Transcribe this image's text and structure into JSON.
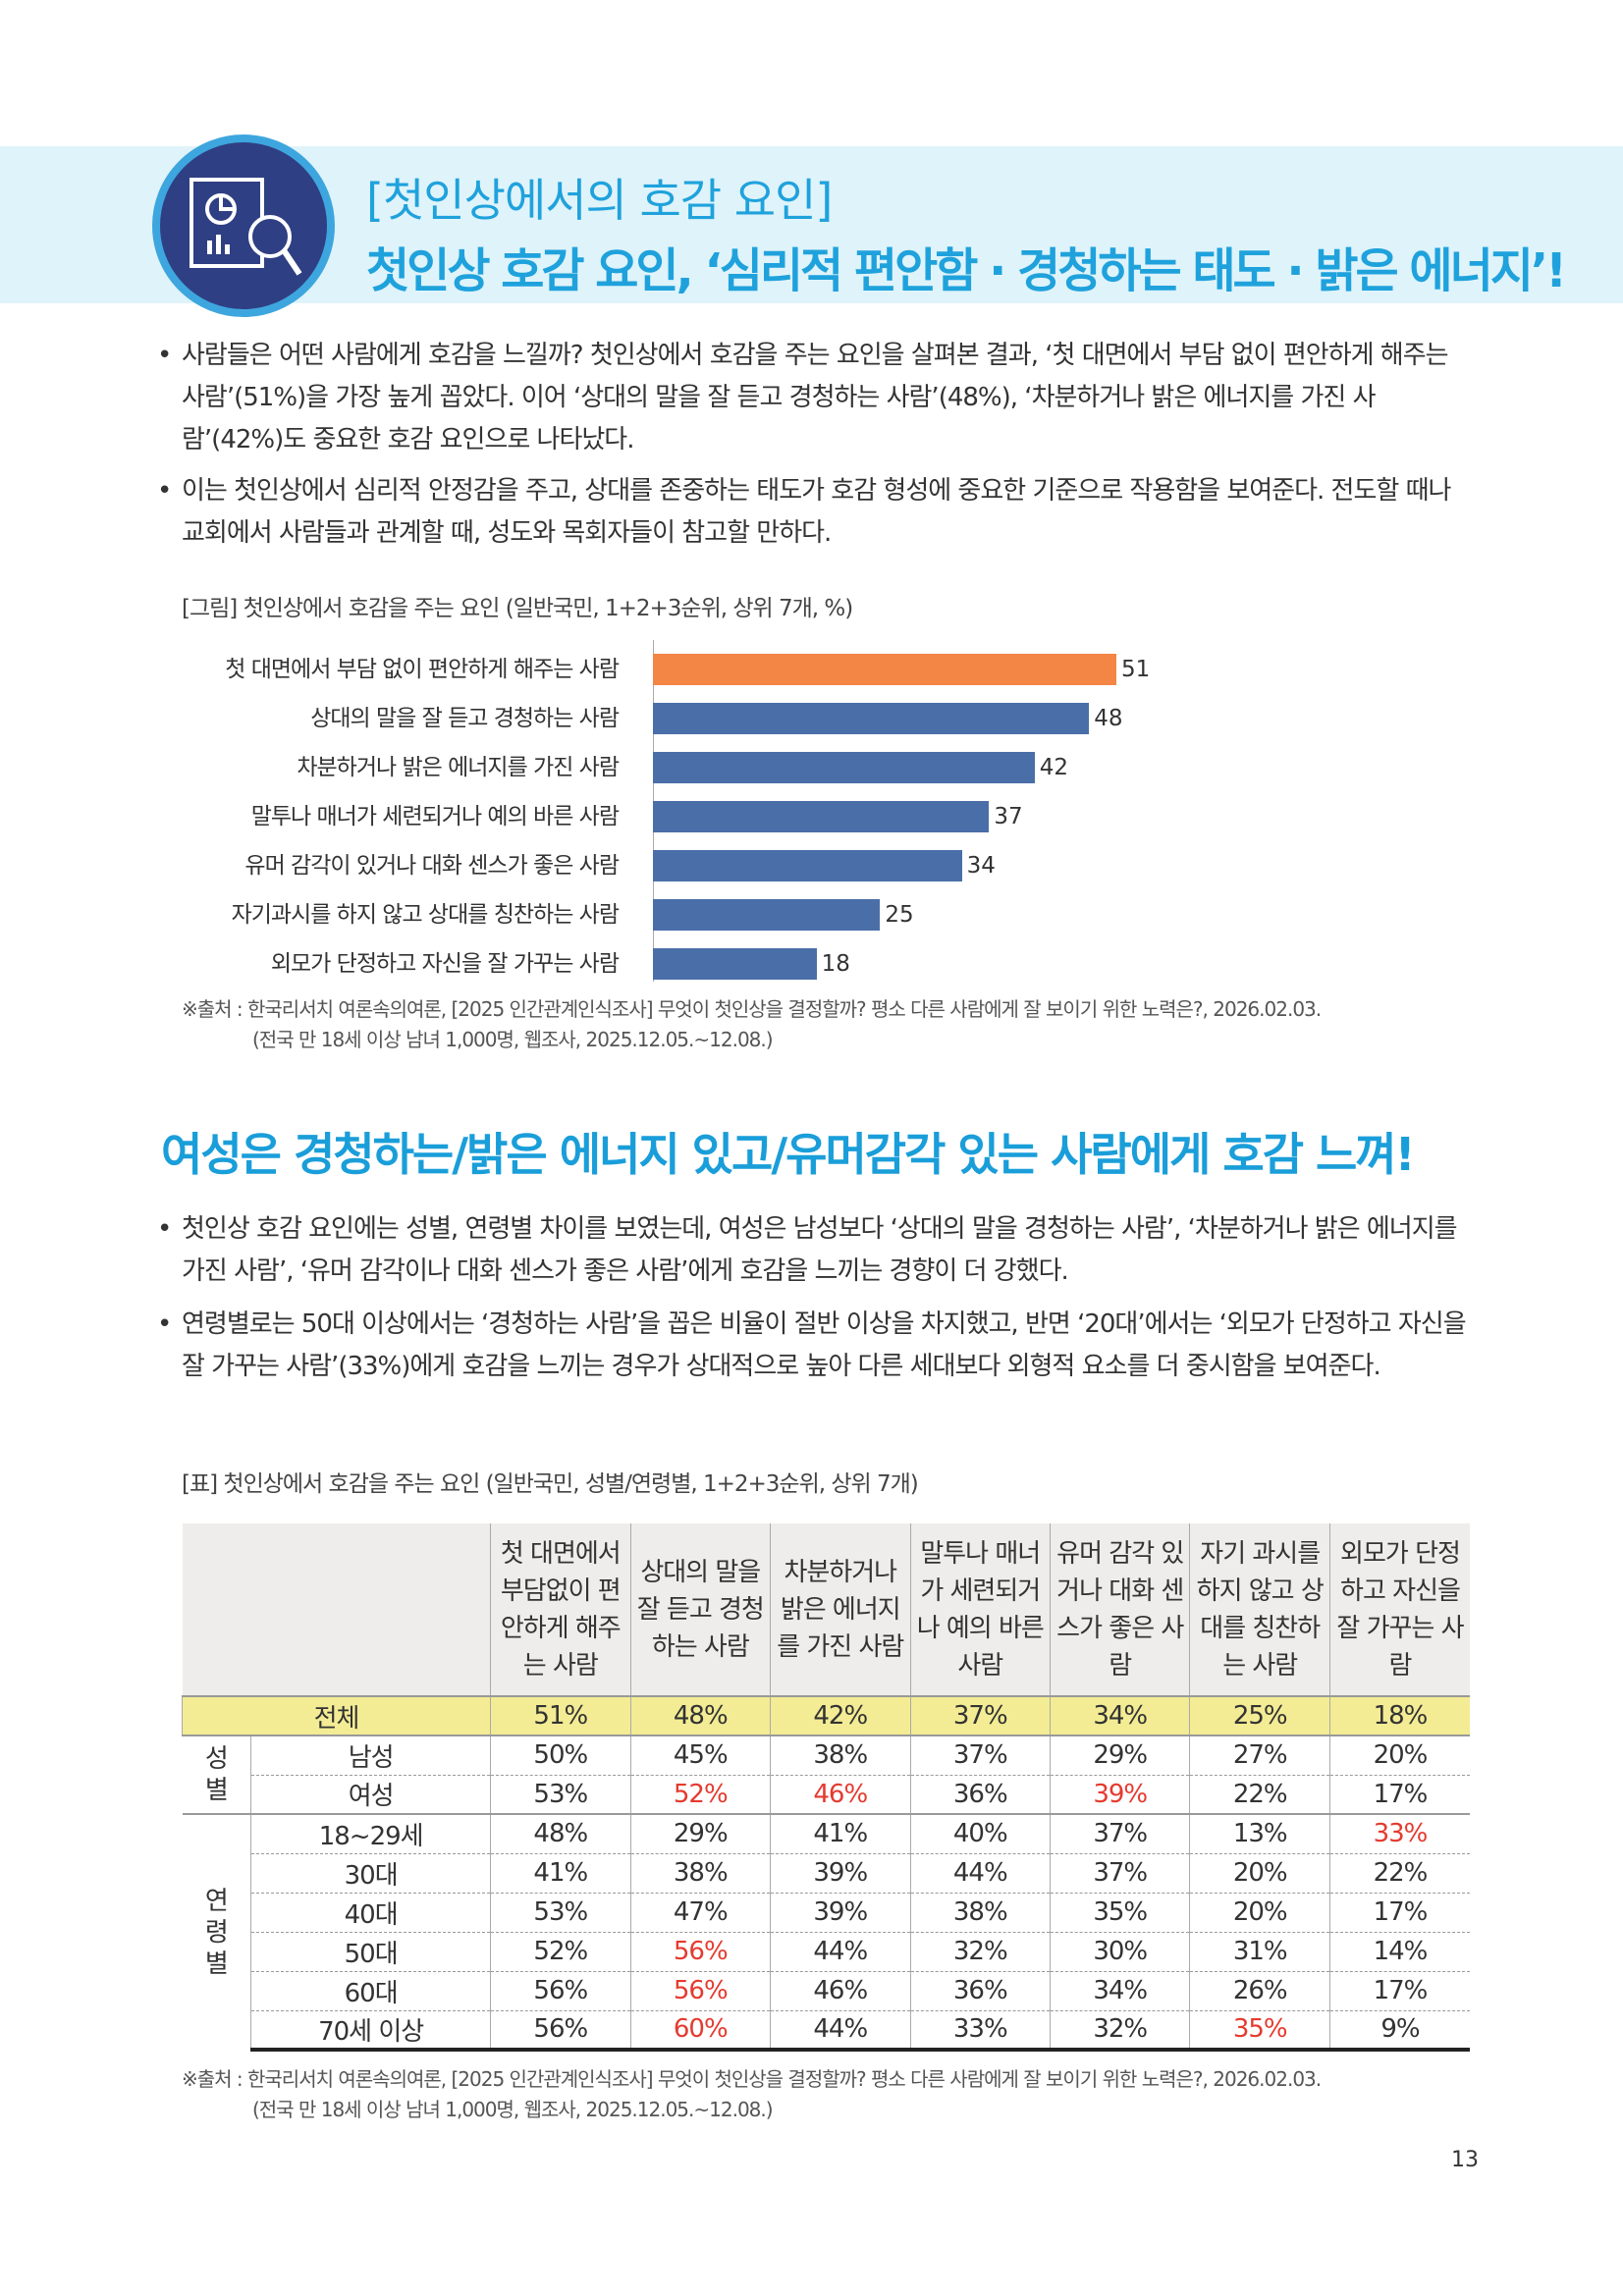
{
  "header": {
    "title_line1": "[첫인상에서의 호감 요인]",
    "title_line2": "첫인상 호감 요인, ‘심리적 편안함 · 경청하는 태도 · 밝은 에너지’!",
    "icon": "report-magnifier-icon"
  },
  "section1": {
    "bullets": [
      "사람들은 어떤 사람에게 호감을 느낄까? 첫인상에서 호감을 주는 요인을 살펴본 결과, ‘첫 대면에서 부담 없이 편안하게 해주는 사람’(51%)을 가장 높게 꼽았다. 이어 ‘상대의 말을 잘 듣고 경청하는 사람’(48%), ‘차분하거나 밝은 에너지를 가진 사람’(42%)도 중요한 호감 요인으로 나타났다.",
      "이는 첫인상에서 심리적 안정감을 주고, 상대를 존중하는 태도가 호감 형성에 중요한 기준으로 작용함을 보여준다. 전도할 때나 교회에서 사람들과 관계할 때, 성도와 목회자들이 참고할 만하다."
    ],
    "figure_caption": "[그림] 첫인상에서 호감을 주는 요인 (일반국민, 1+2+3순위, 상위 7개, %)",
    "source_line1": "※출처 : 한국리서치 여론속의여론, [2025 인간관계인식조사] 무엇이 첫인상을 결정할까? 평소 다른 사람에게 잘 보이기 위한 노력은?, 2026.02.03.",
    "source_line2": "(전국 만 18세 이상 남녀 1,000명, 웹조사, 2025.12.05.~12.08.)"
  },
  "chart_data": {
    "type": "bar",
    "orientation": "horizontal",
    "categories": [
      "첫 대면에서 부담 없이 편안하게 해주는 사람",
      "상대의 말을 잘 듣고 경청하는 사람",
      "차분하거나 밝은 에너지를 가진 사람",
      "말투나 매너가 세련되거나 예의 바른 사람",
      "유머 감각이 있거나 대화 센스가 좋은 사람",
      "자기과시를 하지 않고 상대를 칭찬하는 사람",
      "외모가 단정하고 자신을 잘 가꾸는 사람"
    ],
    "values": [
      51,
      48,
      42,
      37,
      34,
      25,
      18
    ],
    "highlight_color": "#f38645",
    "bar_color": "#4a6ea8",
    "xlim": [
      0,
      51
    ],
    "grid": false
  },
  "section2": {
    "heading": "여성은 경청하는/밝은 에너지 있고/유머감각 있는 사람에게 호감 느껴!",
    "bullets": [
      "첫인상 호감 요인에는 성별, 연령별 차이를 보였는데, 여성은 남성보다 ‘상대의 말을 경청하는 사람’, ‘차분하거나 밝은 에너지를 가진 사람’, ‘유머 감각이나 대화 센스가 좋은 사람’에게 호감을 느끼는 경향이 더 강했다.",
      "연령별로는 50대 이상에서는 ‘경청하는 사람’을 꼽은 비율이 절반 이상을 차지했고, 반면 ‘20대’에서는 ‘외모가 단정하고 자신을 잘 가꾸는 사람’(33%)에게 호감을 느끼는 경우가 상대적으로 높아 다른 세대보다 외형적 요소를 더 중시함을 보여준다."
    ],
    "table_caption": "[표] 첫인상에서 호감을 주는 요인 (일반국민, 성별/연령별, 1+2+3순위, 상위 7개)",
    "table": {
      "headers": [
        "첫 대면에서 부담없이 편안하게 해주는 사람",
        "상대의 말을 잘 듣고 경청하는 사람",
        "차분하거나 밝은 에너지를 가진 사람",
        "말투나 매너가 세련되거나 예의 바른 사람",
        "유머 감각 있거나 대화 센스가 좋은 사람",
        "자기 과시를 하지 않고 상대를 칭찬하는 사람",
        "외모가 단정하고 자신을 잘 가꾸는 사람"
      ],
      "highlight_color": "#e53a2f",
      "total": {
        "label": "전체",
        "values": [
          "51%",
          "48%",
          "42%",
          "37%",
          "34%",
          "25%",
          "18%"
        ]
      },
      "groups": [
        {
          "label": "성별",
          "rows": [
            {
              "label": "남성",
              "values": [
                "50%",
                "45%",
                "38%",
                "37%",
                "29%",
                "27%",
                "20%"
              ],
              "highlight": []
            },
            {
              "label": "여성",
              "values": [
                "53%",
                "52%",
                "46%",
                "36%",
                "39%",
                "22%",
                "17%"
              ],
              "highlight": [
                1,
                2,
                4
              ]
            }
          ]
        },
        {
          "label": "연령별",
          "rows": [
            {
              "label": "18~29세",
              "values": [
                "48%",
                "29%",
                "41%",
                "40%",
                "37%",
                "13%",
                "33%"
              ],
              "highlight": [
                6
              ]
            },
            {
              "label": "30대",
              "values": [
                "41%",
                "38%",
                "39%",
                "44%",
                "37%",
                "20%",
                "22%"
              ],
              "highlight": []
            },
            {
              "label": "40대",
              "values": [
                "53%",
                "47%",
                "39%",
                "38%",
                "35%",
                "20%",
                "17%"
              ],
              "highlight": []
            },
            {
              "label": "50대",
              "values": [
                "52%",
                "56%",
                "44%",
                "32%",
                "30%",
                "31%",
                "14%"
              ],
              "highlight": [
                1
              ]
            },
            {
              "label": "60대",
              "values": [
                "56%",
                "56%",
                "46%",
                "36%",
                "34%",
                "26%",
                "17%"
              ],
              "highlight": [
                1
              ]
            },
            {
              "label": "70세 이상",
              "values": [
                "56%",
                "60%",
                "44%",
                "33%",
                "32%",
                "35%",
                "9%"
              ],
              "highlight": [
                1,
                5
              ]
            }
          ]
        }
      ]
    },
    "source_line1": "※출처 : 한국리서치 여론속의여론, [2025 인간관계인식조사] 무엇이 첫인상을 결정할까? 평소 다른 사람에게 잘 보이기 위한 노력은?, 2026.02.03.",
    "source_line2": "(전국 만 18세 이상 남녀 1,000명, 웹조사, 2025.12.05.~12.08.)"
  },
  "page_number": "13"
}
